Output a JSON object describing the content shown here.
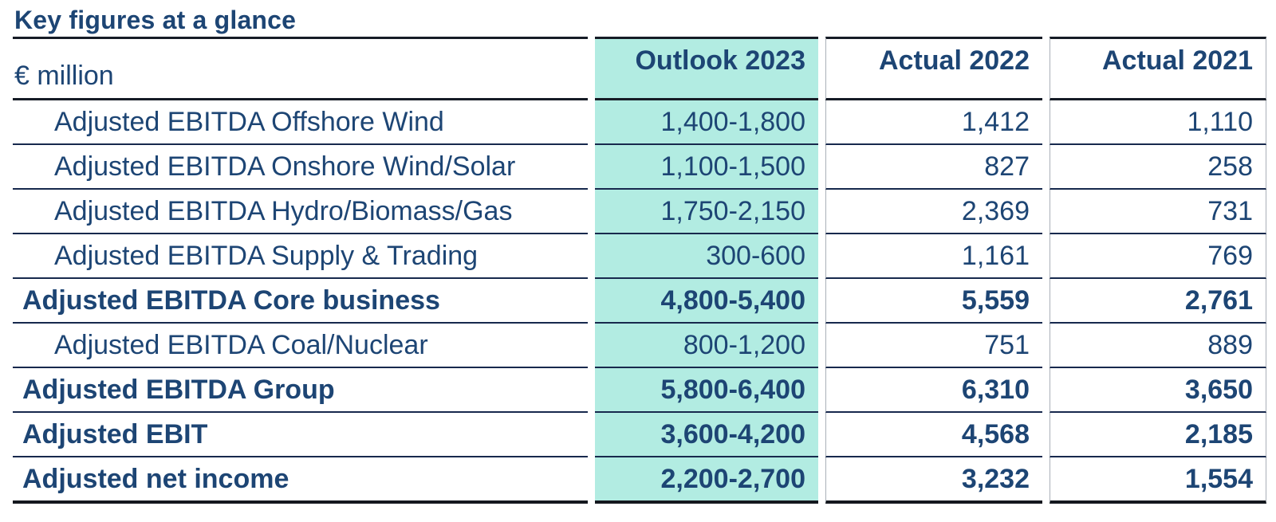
{
  "title": "Key figures at a glance",
  "colors": {
    "text_navy": "#1d4574",
    "outlook_highlight_teal": "#b2ece2",
    "row_line": "#17294d",
    "outer_rule": "#14181f",
    "column_divider_gray": "#aab0b8"
  },
  "table": {
    "unit_label": "€ million",
    "columns": [
      "Outlook 2023",
      "Actual 2022",
      "Actual 2021"
    ],
    "rows": [
      {
        "label": "Adjusted EBITDA Offshore Wind",
        "indent": true,
        "bold": false,
        "outlook_2023": "1,400-1,800",
        "actual_2022": "1,412",
        "actual_2021": "1,110"
      },
      {
        "label": "Adjusted EBITDA Onshore Wind/Solar",
        "indent": true,
        "bold": false,
        "outlook_2023": "1,100-1,500",
        "actual_2022": "827",
        "actual_2021": "258"
      },
      {
        "label": "Adjusted EBITDA Hydro/Biomass/Gas",
        "indent": true,
        "bold": false,
        "outlook_2023": "1,750-2,150",
        "actual_2022": "2,369",
        "actual_2021": "731"
      },
      {
        "label": "Adjusted EBITDA Supply & Trading",
        "indent": true,
        "bold": false,
        "outlook_2023": "300-600",
        "actual_2022": "1,161",
        "actual_2021": "769"
      },
      {
        "label": "Adjusted EBITDA Core business",
        "indent": false,
        "bold": true,
        "outlook_2023": "4,800-5,400",
        "actual_2022": "5,559",
        "actual_2021": "2,761"
      },
      {
        "label": "Adjusted EBITDA Coal/Nuclear",
        "indent": true,
        "bold": false,
        "outlook_2023": "800-1,200",
        "actual_2022": "751",
        "actual_2021": "889"
      },
      {
        "label": "Adjusted EBITDA Group",
        "indent": false,
        "bold": true,
        "outlook_2023": "5,800-6,400",
        "actual_2022": "6,310",
        "actual_2021": "3,650"
      },
      {
        "label": "Adjusted EBIT",
        "indent": false,
        "bold": true,
        "outlook_2023": "3,600-4,200",
        "actual_2022": "4,568",
        "actual_2021": "2,185"
      },
      {
        "label": "Adjusted net income",
        "indent": false,
        "bold": true,
        "outlook_2023": "2,200-2,700",
        "actual_2022": "3,232",
        "actual_2021": "1,554"
      }
    ]
  },
  "chart_data": {
    "type": "table",
    "title": "Key figures at a glance",
    "unit": "€ million",
    "columns": [
      "€ million",
      "Outlook 2023",
      "Actual 2022",
      "Actual 2021"
    ],
    "highlight_column": "Outlook 2023",
    "rows": [
      {
        "label": "Adjusted EBITDA Offshore Wind",
        "outlook_2023": [
          1400,
          1800
        ],
        "actual_2022": 1412,
        "actual_2021": 1110,
        "subtotal": false
      },
      {
        "label": "Adjusted EBITDA Onshore Wind/Solar",
        "outlook_2023": [
          1100,
          1500
        ],
        "actual_2022": 827,
        "actual_2021": 258,
        "subtotal": false
      },
      {
        "label": "Adjusted EBITDA Hydro/Biomass/Gas",
        "outlook_2023": [
          1750,
          2150
        ],
        "actual_2022": 2369,
        "actual_2021": 731,
        "subtotal": false
      },
      {
        "label": "Adjusted EBITDA Supply & Trading",
        "outlook_2023": [
          300,
          600
        ],
        "actual_2022": 1161,
        "actual_2021": 769,
        "subtotal": false
      },
      {
        "label": "Adjusted EBITDA Core business",
        "outlook_2023": [
          4800,
          5400
        ],
        "actual_2022": 5559,
        "actual_2021": 2761,
        "subtotal": true
      },
      {
        "label": "Adjusted EBITDA Coal/Nuclear",
        "outlook_2023": [
          800,
          1200
        ],
        "actual_2022": 751,
        "actual_2021": 889,
        "subtotal": false
      },
      {
        "label": "Adjusted EBITDA Group",
        "outlook_2023": [
          5800,
          6400
        ],
        "actual_2022": 6310,
        "actual_2021": 3650,
        "subtotal": true
      },
      {
        "label": "Adjusted EBIT",
        "outlook_2023": [
          3600,
          4200
        ],
        "actual_2022": 4568,
        "actual_2021": 2185,
        "subtotal": true
      },
      {
        "label": "Adjusted net income",
        "outlook_2023": [
          2200,
          2700
        ],
        "actual_2022": 3232,
        "actual_2021": 1554,
        "subtotal": true
      }
    ]
  }
}
